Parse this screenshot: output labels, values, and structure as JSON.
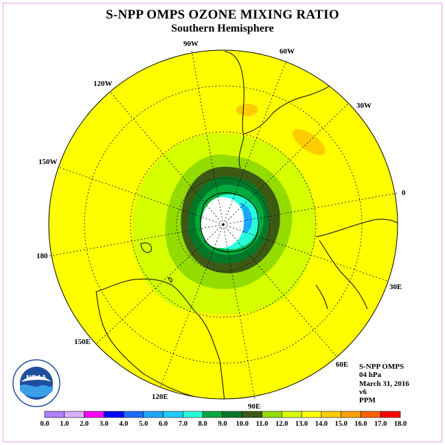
{
  "title": "S-NPP OMPS OZONE MIXING RATIO",
  "subtitle": "Southern Hemisphere",
  "longitude_labels": [
    "90W",
    "60W",
    "30W",
    "0",
    "30E",
    "60E",
    "90E",
    "120E",
    "150E",
    "180",
    "150W",
    "120W"
  ],
  "info": {
    "instrument": "S-NPP OMPS",
    "level": "04 hPa",
    "date": "March 31, 2016",
    "version": "v6",
    "units": "PPM"
  },
  "logo": {
    "text": "NOAA",
    "ring_text": "NATIONAL OCEANIC AND ATMOSPHERIC ADMINISTRATION · U.S. DEPARTMENT OF COMMERCE"
  },
  "colorbar": {
    "labels": [
      "0.0",
      "1.0",
      "2.0",
      "3.0",
      "4.0",
      "5.0",
      "6.0",
      "7.0",
      "8.0",
      "9.0",
      "10.0",
      "11.0",
      "12.0",
      "13.0",
      "14.0",
      "15.0",
      "16.0",
      "17.0",
      "18.0"
    ],
    "colors": [
      "#b080ff",
      "#d8b0ff",
      "#ff00ff",
      "#0000ff",
      "#1c6cff",
      "#1ea6ff",
      "#20ccff",
      "#28ffd8",
      "#00aa3c",
      "#00782a",
      "#3c5a14",
      "#94dc00",
      "#d8ff00",
      "#ffff00",
      "#ffcc00",
      "#ffa000",
      "#ff6400",
      "#ff0000",
      "#8b5a3c"
    ]
  },
  "colors": {
    "ocean_fill": "#ffff00",
    "frame_border": "#e6a0e6"
  }
}
